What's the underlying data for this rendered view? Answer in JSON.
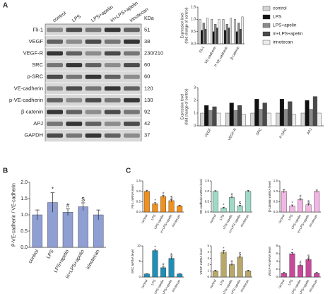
{
  "panel_labels": [
    "A",
    "B",
    "C"
  ],
  "blot": {
    "unit": "KDa",
    "columns": [
      "control",
      "LPS",
      "LPS+apelin",
      "iri+LPS+apelin",
      "irinotecan"
    ],
    "rows": [
      {
        "name": "Fli-1",
        "kda": 51
      },
      {
        "name": "VEGF",
        "kda": 38
      },
      {
        "name": "VEGF-R",
        "kda": "230/210"
      },
      {
        "name": "SRC",
        "kda": 60
      },
      {
        "name": "p-SRC",
        "kda": 60
      },
      {
        "name": "VE-cadherin",
        "kda": 120
      },
      {
        "name": "p-VE-cadherin",
        "kda": 130
      },
      {
        "name": "β-catenin",
        "kda": 92
      },
      {
        "name": "APJ",
        "kda": 42
      },
      {
        "name": "GAPDH",
        "kda": 37
      }
    ]
  },
  "chart_data": [
    {
      "type": "bar",
      "ylabel": [
        "Expression level",
        "(fold change of control)"
      ],
      "categories": [
        "Fli-1",
        "VE-cadherin",
        "P-VE-cadherin",
        "β-catenin"
      ],
      "series": [
        {
          "name": "control",
          "color": "#d4d4d4",
          "values": [
            1.0,
            1.0,
            1.0,
            1.0
          ]
        },
        {
          "name": "LPS",
          "color": "#111111",
          "values": [
            0.55,
            0.5,
            0.55,
            0.5
          ]
        },
        {
          "name": "LPS+apelin",
          "color": "#8a8a8a",
          "values": [
            0.85,
            0.8,
            0.8,
            0.85
          ]
        },
        {
          "name": "iri+LPS+apelin",
          "color": "#4a4a4a",
          "values": [
            0.6,
            0.65,
            0.65,
            0.6
          ]
        },
        {
          "name": "irinotecan",
          "color": "#ececec",
          "values": [
            1.05,
            1.0,
            1.05,
            1.1
          ]
        }
      ],
      "ylim": [
        0,
        1.5
      ],
      "yticks": [
        {
          "value": 0,
          "label": "0.0"
        },
        {
          "value": 0.5,
          "label": "0.5"
        },
        {
          "value": 1,
          "label": "1.0"
        },
        {
          "value": 1.5,
          "label": "1.5"
        }
      ]
    },
    {
      "type": "bar",
      "ylabel": [
        "Expression level",
        "(fold change of control)"
      ],
      "categories": [
        "VEGF",
        "VEGF-R",
        "SRC",
        "P-SRC",
        "APJ"
      ],
      "series": [
        {
          "color": "#d4d4d4",
          "values": [
            1.0,
            1.0,
            1.0,
            1.0,
            1.0
          ]
        },
        {
          "color": "#111111",
          "values": [
            1.6,
            1.8,
            2.1,
            2.1,
            2.0
          ]
        },
        {
          "color": "#8a8a8a",
          "values": [
            1.2,
            1.2,
            1.3,
            1.3,
            1.3
          ]
        },
        {
          "color": "#4a4a4a",
          "values": [
            1.5,
            1.6,
            1.8,
            1.9,
            2.3
          ]
        },
        {
          "color": "#ececec",
          "values": [
            1.0,
            0.9,
            1.0,
            0.9,
            1.0
          ]
        }
      ],
      "ylim": [
        0,
        3
      ],
      "yticks": [
        0,
        1,
        2,
        3
      ]
    },
    {
      "type": "bar",
      "ylabel": [
        "P-VE-cadherin / VE-cadherin"
      ],
      "categories": [
        "control",
        "LPS",
        "LPS+apelin",
        "iri+LPS+apelin",
        "irinotecan"
      ],
      "values": [
        1.0,
        1.38,
        1.08,
        1.25,
        1.0
      ],
      "errors": [
        0.15,
        0.3,
        0.1,
        0.12,
        0.15
      ],
      "markers": [
        null,
        "*",
        "#",
        "$",
        null
      ],
      "color": "#8f9fd4",
      "ylim": [
        0,
        2
      ],
      "yticks": [
        {
          "value": 0,
          "label": "0.0"
        },
        {
          "value": 0.5,
          "label": "0.5"
        },
        {
          "value": 1,
          "label": "1.0"
        },
        {
          "value": 1.5,
          "label": "1.5"
        },
        {
          "value": 2,
          "label": "2.0"
        }
      ]
    },
    {
      "type": "bar",
      "ylabel": [
        "Fli-1 mRNA level"
      ],
      "categories": [
        "control",
        "LPS",
        "LPS+apelin",
        "iri+LPS+apelin",
        "irinotecan"
      ],
      "values": [
        1.0,
        0.4,
        0.75,
        0.55,
        0.3
      ],
      "errors": [
        0.05,
        0.05,
        0.05,
        0.05,
        0.03
      ],
      "markers": [
        null,
        "*",
        "#",
        "$",
        null
      ],
      "color": "#f0901e",
      "ylim": [
        0,
        1.5
      ],
      "yticks": [
        {
          "value": 0,
          "label": "0.0"
        },
        {
          "value": 0.5,
          "label": "0.5"
        },
        {
          "value": 1,
          "label": "1.0"
        },
        {
          "value": 1.5,
          "label": "1.5"
        }
      ]
    },
    {
      "type": "bar",
      "ylabel": [
        "VE-cadherin mRNA level"
      ],
      "categories": [
        "control",
        "LPS",
        "LPS+apelin",
        "iri+LPS+apelin",
        "irinotecan"
      ],
      "values": [
        1.0,
        0.2,
        0.7,
        0.3,
        1.0
      ],
      "errors": [
        0.03,
        0.03,
        0.04,
        0.03,
        0.04
      ],
      "markers": [
        null,
        "*",
        "#",
        "$",
        null
      ],
      "color": "#9fdac8",
      "ylim": [
        0,
        1.5
      ],
      "yticks": [
        {
          "value": 0,
          "label": "0.0"
        },
        {
          "value": 0.5,
          "label": "0.5"
        },
        {
          "value": 1,
          "label": "1.0"
        },
        {
          "value": 1.5,
          "label": "1.5"
        }
      ]
    },
    {
      "type": "bar",
      "ylabel": [
        "β-catenin mRNA level"
      ],
      "categories": [
        "control",
        "LPS",
        "LPS+apelin",
        "iri+LPS+apelin",
        "irinotecan"
      ],
      "values": [
        1.0,
        0.3,
        0.6,
        0.35,
        1.0
      ],
      "errors": [
        0.08,
        0.04,
        0.05,
        0.04,
        0.06
      ],
      "markers": [
        null,
        "*",
        "#",
        "$",
        null
      ],
      "color": "#f2b6e4",
      "ylim": [
        0,
        1.5
      ],
      "yticks": [
        {
          "value": 0,
          "label": "0.0"
        },
        {
          "value": 0.5,
          "label": "0.5"
        },
        {
          "value": 1,
          "label": "1.0"
        },
        {
          "value": 1.5,
          "label": "1.5"
        }
      ]
    },
    {
      "type": "bar",
      "ylabel": [
        "SRC mRNA level"
      ],
      "categories": [
        "control",
        "LPS",
        "LPS+apelin",
        "iri+LPS+apelin",
        "irinotecan"
      ],
      "values": [
        1.0,
        8.5,
        3.0,
        6.0,
        1.0
      ],
      "errors": [
        0.1,
        0.4,
        0.3,
        0.4,
        0.1
      ],
      "markers": [
        null,
        "*",
        "#",
        "$",
        null
      ],
      "color": "#1f8fb8",
      "ylim": [
        0,
        10
      ],
      "yticks": [
        0,
        5,
        10
      ]
    },
    {
      "type": "bar",
      "ylabel": [
        "VEGF mRNA level"
      ],
      "categories": [
        "control",
        "LPS",
        "LPS+apelin",
        "iri+LPS+apelin",
        "irinotecan"
      ],
      "values": [
        1.0,
        4.0,
        2.0,
        3.2,
        1.0
      ],
      "errors": [
        0.1,
        0.25,
        0.15,
        0.2,
        0.1
      ],
      "markers": [
        null,
        "*",
        "#",
        "$",
        null
      ],
      "color": "#b8a86a",
      "ylim": [
        0,
        5
      ],
      "yticks": [
        0,
        1,
        2,
        3,
        4,
        5
      ]
    },
    {
      "type": "bar",
      "ylabel": [
        "VEGF-R mRNA level"
      ],
      "categories": [
        "control",
        "LPS",
        "LPS+apelin",
        "iri+LPS+apelin",
        "irinotecan"
      ],
      "values": [
        1.0,
        6.0,
        3.0,
        4.5,
        1.0
      ],
      "errors": [
        0.15,
        0.3,
        0.3,
        0.3,
        0.15
      ],
      "markers": [
        null,
        "*",
        "#",
        "$",
        null
      ],
      "color": "#c8489a",
      "ylim": [
        0,
        8
      ],
      "yticks": [
        0,
        2,
        4,
        6,
        8
      ]
    }
  ]
}
